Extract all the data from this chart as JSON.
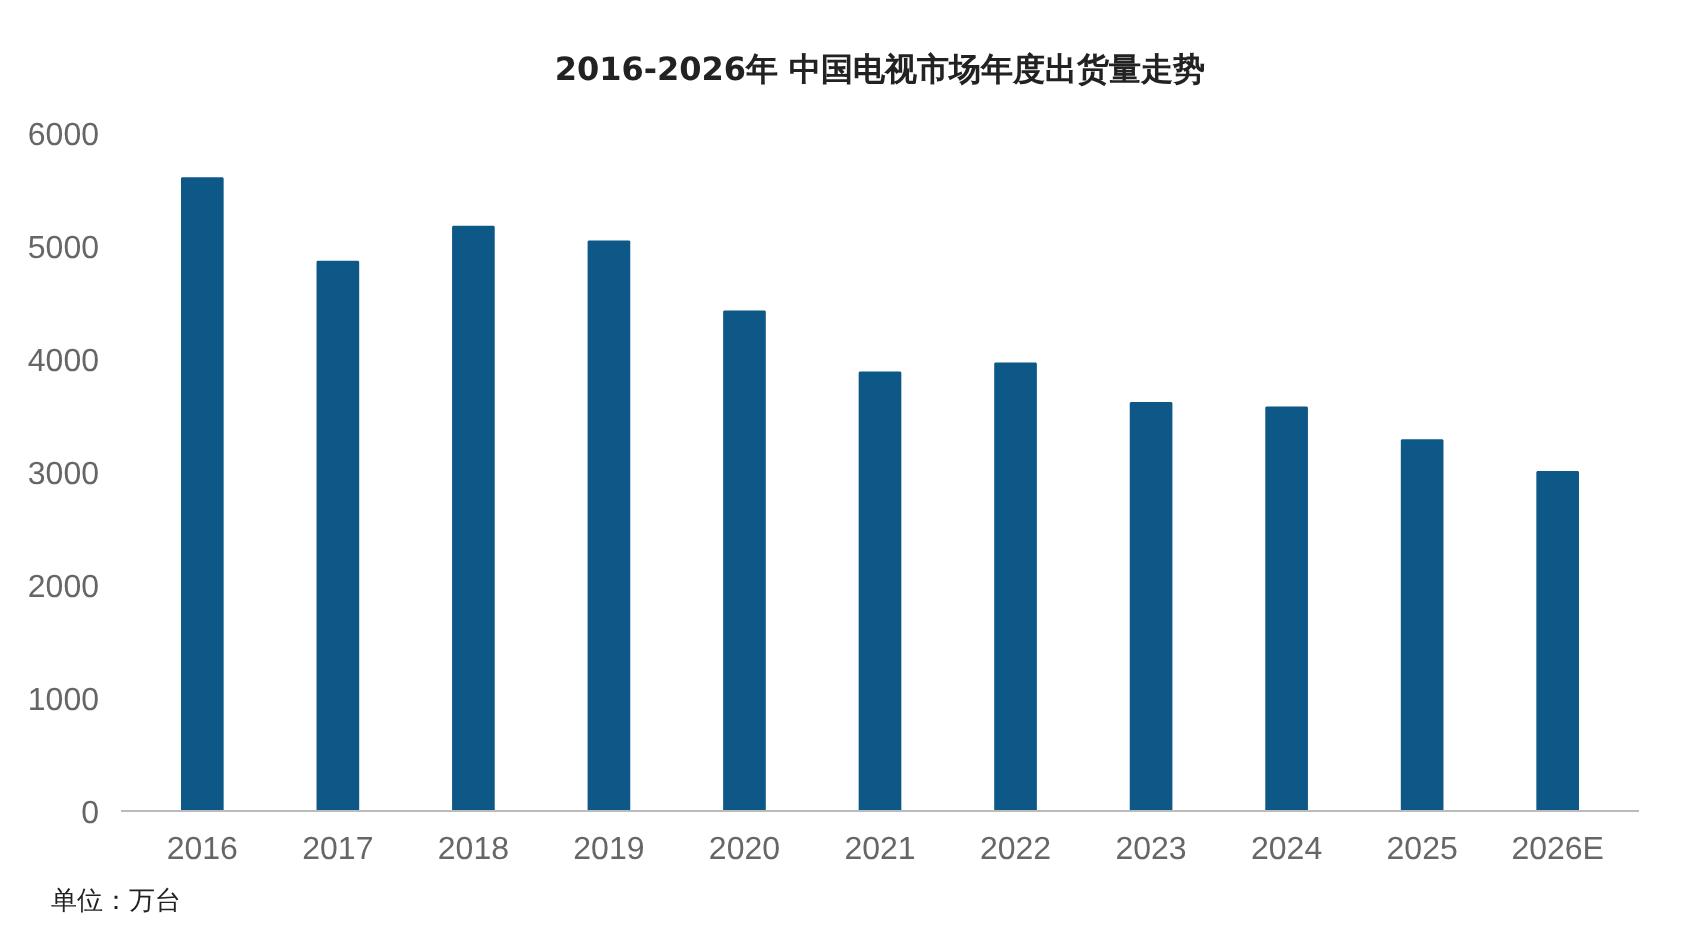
{
  "chart_data": {
    "type": "bar",
    "title": "2016-2026年 中国电视市场年度出货量走势",
    "categories": [
      "2016",
      "2017",
      "2018",
      "2019",
      "2020",
      "2021",
      "2022",
      "2023",
      "2024",
      "2025",
      "2026E"
    ],
    "values": [
      5600,
      4860,
      5170,
      5040,
      4420,
      3880,
      3960,
      3610,
      3570,
      3280,
      3000
    ],
    "color": "#0d5886",
    "ylim": [
      0,
      6000
    ],
    "yticks": [
      0,
      1000,
      2000,
      3000,
      4000,
      5000,
      6000
    ],
    "grid": false,
    "annotations": [
      "单位：万台"
    ]
  }
}
